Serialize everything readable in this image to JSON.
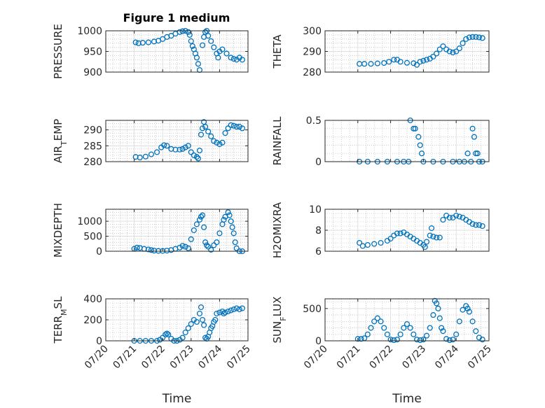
{
  "figure": {
    "title": "Figure 1 medium",
    "marker_color": "#0072BD",
    "axis_color": "#262626",
    "grid_color": "#b0b0b0"
  },
  "chart_data": [
    {
      "type": "scatter",
      "name": "PRESSURE",
      "ylabel": "PRESSURE",
      "xlim": [
        "07/20",
        "07/25"
      ],
      "xticks": [
        "07/20",
        "07/21",
        "07/22",
        "07/23",
        "07/24",
        "07/25"
      ],
      "ylim": [
        900,
        1000
      ],
      "yticks": [
        900,
        950,
        1000
      ],
      "grid": true,
      "show_xticklabels": false,
      "xlabel": "",
      "x": [
        1.05,
        1.15,
        1.3,
        1.5,
        1.7,
        1.85,
        2.0,
        2.15,
        2.3,
        2.45,
        2.6,
        2.7,
        2.8,
        2.9,
        2.95,
        3.0,
        3.05,
        3.1,
        3.15,
        3.2,
        3.25,
        3.3,
        3.4,
        3.45,
        3.5,
        3.55,
        3.6,
        3.7,
        3.8,
        3.9,
        3.95,
        4.0,
        4.1,
        4.25,
        4.4,
        4.5,
        4.6,
        4.7,
        4.8
      ],
      "y": [
        972,
        970,
        971,
        972,
        974,
        976,
        980,
        985,
        988,
        993,
        997,
        999,
        1000,
        997,
        990,
        975,
        963,
        955,
        945,
        935,
        920,
        905,
        965,
        985,
        997,
        1000,
        988,
        975,
        960,
        945,
        935,
        950,
        955,
        945,
        935,
        932,
        930,
        935,
        930
      ]
    },
    {
      "type": "scatter",
      "name": "THETA",
      "ylabel": "THETA",
      "xlim": [
        "07/20",
        "07/25"
      ],
      "xticks": [
        "07/20",
        "07/21",
        "07/22",
        "07/23",
        "07/24",
        "07/25"
      ],
      "ylim": [
        280,
        300
      ],
      "yticks": [
        280,
        290,
        300
      ],
      "grid": true,
      "show_xticklabels": false,
      "xlabel": "",
      "x": [
        1.05,
        1.2,
        1.4,
        1.6,
        1.8,
        1.95,
        2.1,
        2.2,
        2.3,
        2.5,
        2.7,
        2.8,
        2.9,
        3.0,
        3.1,
        3.2,
        3.3,
        3.4,
        3.5,
        3.6,
        3.7,
        3.8,
        3.9,
        4.0,
        4.1,
        4.2,
        4.3,
        4.4,
        4.5,
        4.6,
        4.7,
        4.8
      ],
      "y": [
        284,
        284,
        284,
        284.2,
        284.4,
        285,
        286,
        286,
        285,
        284.5,
        284.3,
        283.5,
        285,
        285.5,
        286,
        286.5,
        287.5,
        289,
        291,
        292.5,
        291,
        290,
        289.5,
        290,
        291.5,
        294,
        296,
        296.8,
        297,
        297,
        296.8,
        296.5
      ]
    },
    {
      "type": "scatter",
      "name": "AIR_TEMP",
      "ylabel": "AIR_TEMP",
      "xlim": [
        "07/20",
        "07/25"
      ],
      "xticks": [
        "07/20",
        "07/21",
        "07/22",
        "07/23",
        "07/24",
        "07/25"
      ],
      "ylim": [
        280,
        293
      ],
      "yticks": [
        280,
        285,
        290
      ],
      "grid": true,
      "show_xticklabels": false,
      "xlabel": "",
      "x": [
        1.05,
        1.2,
        1.4,
        1.6,
        1.8,
        1.95,
        2.05,
        2.15,
        2.3,
        2.45,
        2.6,
        2.7,
        2.8,
        2.9,
        3.0,
        3.1,
        3.2,
        3.25,
        3.3,
        3.35,
        3.4,
        3.45,
        3.5,
        3.6,
        3.7,
        3.8,
        3.9,
        4.0,
        4.1,
        4.2,
        4.3,
        4.4,
        4.5,
        4.6,
        4.7,
        4.8
      ],
      "y": [
        281.5,
        281.3,
        281.6,
        282.3,
        283,
        284.5,
        285.2,
        285,
        284,
        283.8,
        283.8,
        284,
        284.5,
        285,
        283,
        282,
        281.5,
        281,
        283.5,
        288.5,
        290.5,
        292.5,
        291,
        289.5,
        288,
        286.5,
        286,
        285.5,
        286,
        289,
        290.5,
        291.5,
        291.3,
        291,
        291,
        290.5
      ]
    },
    {
      "type": "scatter",
      "name": "RAINFALL",
      "ylabel": "RAINFALL",
      "xlim": [
        "07/20",
        "07/25"
      ],
      "xticks": [
        "07/20",
        "07/21",
        "07/22",
        "07/23",
        "07/24",
        "07/25"
      ],
      "ylim": [
        0,
        0.5
      ],
      "yticks": [
        0,
        0.5
      ],
      "grid": true,
      "show_xticklabels": false,
      "xlabel": "",
      "x": [
        1.05,
        1.3,
        1.6,
        1.9,
        2.2,
        2.4,
        2.55,
        2.6,
        2.7,
        2.75,
        2.85,
        2.9,
        2.95,
        3.0,
        3.3,
        3.6,
        3.9,
        4.1,
        4.25,
        4.35,
        4.45,
        4.5,
        4.55,
        4.6,
        4.65,
        4.7,
        4.8
      ],
      "y": [
        0,
        0,
        0,
        0,
        0,
        0,
        0,
        0.5,
        0.4,
        0.4,
        0.3,
        0.2,
        0.1,
        0,
        0,
        0,
        0,
        0,
        0,
        0.1,
        0,
        0.4,
        0.3,
        0.1,
        0.1,
        0,
        0
      ]
    },
    {
      "type": "scatter",
      "name": "MIXDEPTH",
      "ylabel": "MIXDEPTH",
      "xlim": [
        "07/20",
        "07/25"
      ],
      "xticks": [
        "07/20",
        "07/21",
        "07/22",
        "07/23",
        "07/24",
        "07/25"
      ],
      "ylim": [
        0,
        1400
      ],
      "yticks": [
        0,
        500,
        1000
      ],
      "grid": true,
      "show_xticklabels": false,
      "xlabel": "",
      "x": [
        1.0,
        1.1,
        1.2,
        1.35,
        1.5,
        1.6,
        1.7,
        1.85,
        2.0,
        2.15,
        2.3,
        2.45,
        2.6,
        2.7,
        2.8,
        2.9,
        3.0,
        3.1,
        3.2,
        3.3,
        3.35,
        3.4,
        3.45,
        3.5,
        3.55,
        3.6,
        3.7,
        3.8,
        3.9,
        4.0,
        4.1,
        4.15,
        4.2,
        4.3,
        4.35,
        4.4,
        4.45,
        4.5,
        4.55,
        4.6,
        4.7,
        4.8
      ],
      "y": [
        80,
        120,
        110,
        80,
        60,
        40,
        20,
        10,
        10,
        20,
        40,
        80,
        120,
        180,
        150,
        100,
        400,
        700,
        900,
        1050,
        1150,
        1200,
        800,
        300,
        200,
        150,
        50,
        200,
        300,
        600,
        900,
        1050,
        1150,
        1300,
        1200,
        1000,
        800,
        600,
        300,
        100,
        0,
        0
      ]
    },
    {
      "type": "scatter",
      "name": "H2OMIXRA",
      "ylabel": "H2OMIXRA",
      "xlim": [
        "07/20",
        "07/25"
      ],
      "xticks": [
        "07/20",
        "07/21",
        "07/22",
        "07/23",
        "07/24",
        "07/25"
      ],
      "ylim": [
        6,
        10
      ],
      "yticks": [
        6,
        8,
        10
      ],
      "grid": true,
      "show_xticklabels": false,
      "xlabel": "",
      "x": [
        1.05,
        1.15,
        1.3,
        1.5,
        1.7,
        1.9,
        2.0,
        2.1,
        2.2,
        2.3,
        2.4,
        2.5,
        2.6,
        2.7,
        2.8,
        2.9,
        3.0,
        3.05,
        3.1,
        3.2,
        3.25,
        3.3,
        3.4,
        3.5,
        3.6,
        3.7,
        3.8,
        3.9,
        4.0,
        4.1,
        4.2,
        4.3,
        4.4,
        4.5,
        4.6,
        4.7,
        4.8
      ],
      "y": [
        6.8,
        6.5,
        6.6,
        6.7,
        6.8,
        7.0,
        7.2,
        7.5,
        7.7,
        7.7,
        7.8,
        7.6,
        7.4,
        7.2,
        7.0,
        6.8,
        6.6,
        6.4,
        6.9,
        7.5,
        8.2,
        7.4,
        7.3,
        7.3,
        9.0,
        9.4,
        9.2,
        9.2,
        9.4,
        9.3,
        9.2,
        9.0,
        8.8,
        8.6,
        8.5,
        8.5,
        8.4
      ]
    },
    {
      "type": "scatter",
      "name": "TERR_MSL",
      "ylabel": "TERR_MSL",
      "xlim": [
        "07/20",
        "07/25"
      ],
      "xticks": [
        "07/20",
        "07/21",
        "07/22",
        "07/23",
        "07/24",
        "07/25"
      ],
      "ylim": [
        0,
        400
      ],
      "yticks": [
        0,
        200,
        400
      ],
      "grid": true,
      "show_xticklabels": true,
      "xlabel": "Time",
      "x": [
        1.0,
        1.2,
        1.4,
        1.6,
        1.8,
        1.9,
        2.0,
        2.1,
        2.15,
        2.2,
        2.3,
        2.4,
        2.5,
        2.6,
        2.7,
        2.8,
        2.9,
        3.0,
        3.1,
        3.2,
        3.3,
        3.35,
        3.4,
        3.45,
        3.5,
        3.55,
        3.6,
        3.65,
        3.7,
        3.75,
        3.8,
        3.85,
        3.9,
        4.0,
        4.1,
        4.15,
        4.2,
        4.3,
        4.4,
        4.5,
        4.6,
        4.7,
        4.8
      ],
      "y": [
        0,
        0,
        0,
        0,
        0,
        10,
        30,
        60,
        70,
        60,
        20,
        0,
        0,
        10,
        30,
        80,
        120,
        160,
        200,
        180,
        260,
        320,
        200,
        150,
        30,
        20,
        40,
        80,
        120,
        140,
        180,
        200,
        260,
        270,
        280,
        260,
        270,
        280,
        290,
        300,
        310,
        300,
        310
      ]
    },
    {
      "type": "scatter",
      "name": "SUN_FLUX",
      "ylabel": "SUN_FLUX",
      "xlim": [
        "07/20",
        "07/25"
      ],
      "xticks": [
        "07/20",
        "07/21",
        "07/22",
        "07/23",
        "07/24",
        "07/25"
      ],
      "ylim": [
        0,
        650
      ],
      "yticks": [
        0,
        500
      ],
      "grid": true,
      "show_xticklabels": true,
      "xlabel": "Time",
      "x": [
        1.0,
        1.1,
        1.2,
        1.3,
        1.4,
        1.5,
        1.6,
        1.7,
        1.8,
        1.9,
        2.0,
        2.1,
        2.2,
        2.3,
        2.4,
        2.5,
        2.6,
        2.7,
        2.8,
        2.9,
        3.0,
        3.1,
        3.2,
        3.3,
        3.35,
        3.4,
        3.45,
        3.5,
        3.55,
        3.6,
        3.7,
        3.8,
        3.9,
        4.0,
        4.1,
        4.2,
        4.3,
        4.35,
        4.4,
        4.5,
        4.6,
        4.7,
        4.8
      ],
      "y": [
        30,
        30,
        40,
        100,
        200,
        300,
        350,
        300,
        200,
        100,
        20,
        10,
        20,
        100,
        200,
        260,
        200,
        100,
        20,
        10,
        20,
        80,
        200,
        400,
        620,
        580,
        500,
        350,
        200,
        150,
        30,
        10,
        20,
        100,
        300,
        480,
        540,
        500,
        450,
        300,
        150,
        50,
        20
      ]
    }
  ]
}
